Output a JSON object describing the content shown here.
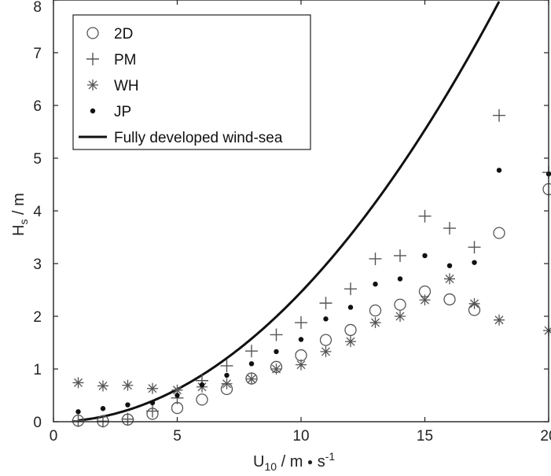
{
  "chart_data": {
    "type": "scatter",
    "xlabel": {
      "base": "U",
      "sub": "10",
      "rest": " / m ",
      "dot": "●",
      "s": " s",
      "sup": "-1"
    },
    "ylabel": {
      "base": "H",
      "sub": "s",
      "rest": " / m"
    },
    "xlim": [
      0,
      20
    ],
    "ylim": [
      0,
      8
    ],
    "xticks": [
      0,
      5,
      10,
      15,
      20
    ],
    "yticks": [
      0,
      1,
      2,
      3,
      4,
      5,
      6,
      7,
      8
    ],
    "grid": false,
    "legend_position": "top-left",
    "x": [
      1,
      2,
      3,
      4,
      5,
      6,
      7,
      8,
      9,
      10,
      11,
      12,
      13,
      14,
      15,
      16,
      17,
      18,
      20
    ],
    "series": [
      {
        "name": "2D",
        "marker": "circle",
        "values": [
          0.02,
          0.01,
          0.04,
          0.15,
          0.26,
          0.42,
          0.62,
          0.82,
          1.04,
          1.26,
          1.55,
          1.74,
          2.11,
          2.22,
          2.47,
          2.32,
          2.12,
          3.58,
          4.41
        ]
      },
      {
        "name": "PM",
        "marker": "plus",
        "values": [
          0.02,
          0.01,
          0.05,
          0.2,
          0.45,
          0.78,
          1.06,
          1.34,
          1.65,
          1.88,
          2.25,
          2.52,
          3.09,
          3.15,
          3.9,
          3.67,
          3.31,
          5.81,
          4.73
        ]
      },
      {
        "name": "WH",
        "marker": "asterisk",
        "values": [
          0.74,
          0.68,
          0.69,
          0.63,
          0.6,
          0.66,
          0.72,
          0.81,
          1.0,
          1.08,
          1.33,
          1.52,
          1.88,
          2.0,
          2.31,
          2.71,
          2.24,
          1.93,
          1.73
        ]
      },
      {
        "name": "JP",
        "marker": "dot",
        "values": [
          0.19,
          0.25,
          0.32,
          0.36,
          0.5,
          0.7,
          0.88,
          1.1,
          1.33,
          1.56,
          1.95,
          2.17,
          2.61,
          2.71,
          3.15,
          2.96,
          3.02,
          4.77,
          4.7
        ]
      },
      {
        "name": "Fully developed wind-sea",
        "marker": "line",
        "curve": {
          "x_start": 1,
          "x_end": 18.0,
          "coefficient": 0.0246,
          "exponent": 2
        }
      }
    ],
    "colors": {
      "markers": "#555555",
      "dots": "#111111",
      "line": "#111111"
    }
  }
}
